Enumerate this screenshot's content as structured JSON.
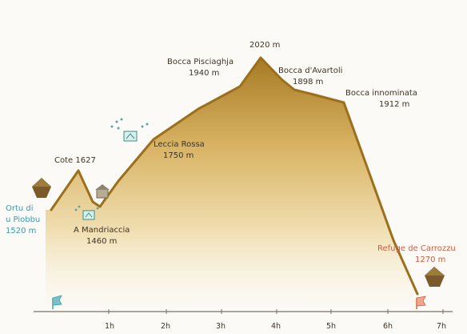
{
  "profile": {
    "waypoints": [
      {
        "name": "Ortu di",
        "name2": "u Piobbu",
        "elev": "1520 m",
        "color": "blue"
      },
      {
        "name": "Cote 1627",
        "name2": "",
        "elev": "",
        "color": "dark"
      },
      {
        "name": "A Mandriaccia",
        "name2": "",
        "elev": "1460 m",
        "color": "dark"
      },
      {
        "name": "Leccia Rossa",
        "name2": "",
        "elev": "1750 m",
        "color": "dark"
      },
      {
        "name": "Bocca Pisciaghja",
        "name2": "",
        "elev": "1940 m",
        "color": "dark"
      },
      {
        "name": "",
        "name2": "",
        "elev": "2020 m",
        "color": "dark"
      },
      {
        "name": "Bocca d'Avartoli",
        "name2": "",
        "elev": "1898 m",
        "color": "dark"
      },
      {
        "name": "Bocca innominata",
        "name2": "",
        "elev": "1912 m",
        "color": "dark"
      },
      {
        "name": "Refuge de Carrozzu",
        "name2": "",
        "elev": "1270 m",
        "color": "red"
      }
    ],
    "time_ticks": [
      "1h",
      "2h",
      "3h",
      "4h",
      "5h",
      "6h",
      "7h"
    ]
  },
  "icons": {
    "start": "blue-flag-icon",
    "end": "red-flag-icon",
    "refuges": [
      "refuge-hut-icon",
      "refuge-hut-icon"
    ],
    "water": [
      "water-source-icon",
      "water-source-icon"
    ],
    "shelter": "shelter-icon"
  },
  "colors": {
    "terrain_dark": "#b48a2e",
    "terrain_light": "#f7ecd0",
    "start": "#3e9ba6",
    "end": "#d55a3c"
  }
}
